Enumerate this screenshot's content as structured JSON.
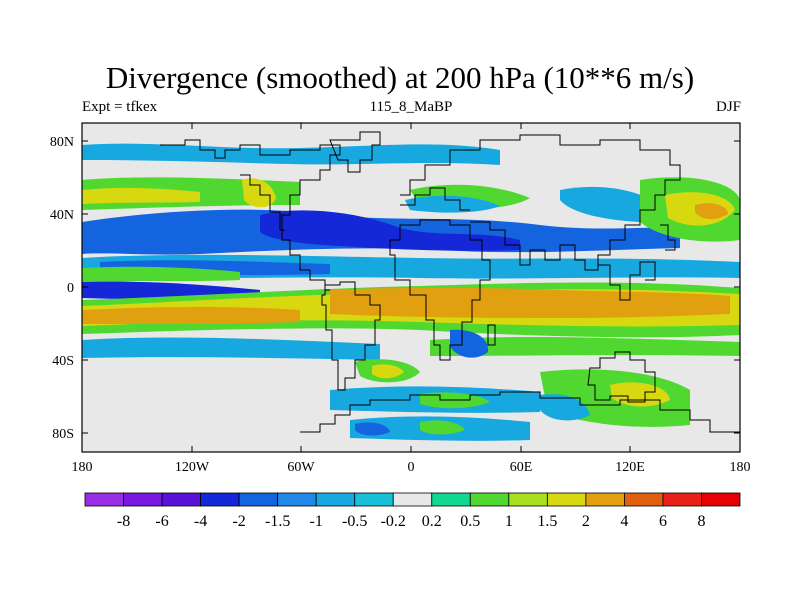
{
  "title": "Divergence (smoothed) at 200 hPa (10**6 m/s)",
  "subtitle_left": "Expt = tfkex",
  "subtitle_center": "115_8_MaBP",
  "subtitle_right": "DJF",
  "y_ticks": [
    "80N",
    "40N",
    "0",
    "40S",
    "80S"
  ],
  "x_ticks": [
    "180",
    "120W",
    "60W",
    "0",
    "60E",
    "120E",
    "180"
  ],
  "colorbar": {
    "labels": [
      "-8",
      "-6",
      "-4",
      "-2",
      "-1.5",
      "-1",
      "-0.5",
      "-0.2",
      "0.2",
      "0.5",
      "1",
      "1.5",
      "2",
      "4",
      "6",
      "8"
    ],
    "colors": [
      "#9a2ee6",
      "#7a18e0",
      "#5a12d8",
      "#1428d8",
      "#1464e0",
      "#2088e6",
      "#18a8e0",
      "#18c0d8",
      "#e8e8e8",
      "#10d890",
      "#50d830",
      "#a8e020",
      "#d8d810",
      "#e0a010",
      "#e06010",
      "#e82018",
      "#e80000"
    ]
  },
  "palette": {
    "neutral": "#e8e8e8",
    "blue_dark": "#1428d8",
    "blue": "#1464e0",
    "cyan": "#18a8e0",
    "green": "#50d830",
    "yellow": "#d8d810",
    "orange": "#e0a010"
  }
}
